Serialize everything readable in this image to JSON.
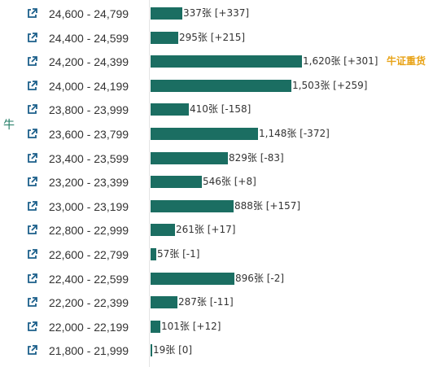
{
  "side_label": "牛",
  "chart_data": {
    "type": "bar",
    "orientation": "horizontal",
    "categories": [
      "24,600 - 24,799",
      "24,400 - 24,599",
      "24,200 - 24,399",
      "24,000 - 24,199",
      "23,800 - 23,999",
      "23,600 - 23,799",
      "23,400 - 23,599",
      "23,200 - 23,399",
      "23,000 - 23,199",
      "22,800 - 22,999",
      "22,600 - 22,799",
      "22,400 - 22,599",
      "22,200 - 22,399",
      "22,000 - 22,199",
      "21,800 - 21,999"
    ],
    "values": [
      337,
      295,
      1620,
      1503,
      410,
      1148,
      829,
      546,
      888,
      261,
      57,
      896,
      287,
      101,
      19
    ],
    "value_labels": [
      "337张 [+337]",
      "295张 [+215]",
      "1,620张 [+301]",
      "1,503张 [+259]",
      "410张 [-158]",
      "1,148张 [-372]",
      "829张 [-83]",
      "546张 [+8]",
      "888张 [+157]",
      "261张 [+17]",
      "57张 [-1]",
      "896张 [-2]",
      "287张 [-11]",
      "101张 [+12]",
      "19张 [0]"
    ],
    "highlight_index": 2,
    "highlight_label": "牛证重货",
    "bar_color": "#1b6e62",
    "highlight_color": "#e8a317",
    "xlim": [
      0,
      1620
    ]
  }
}
